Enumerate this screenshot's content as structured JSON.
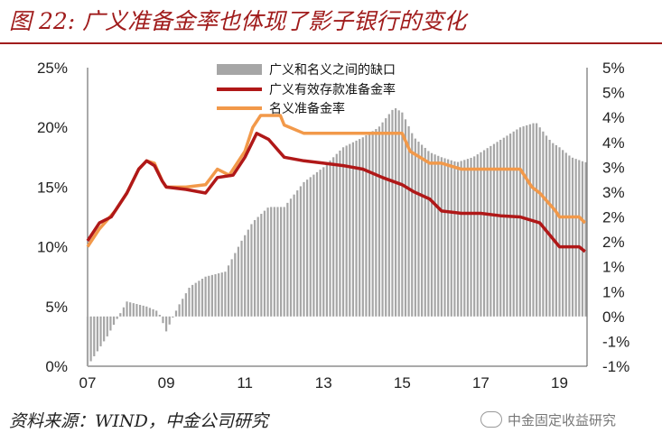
{
  "title": "图 22: 广义准备金率也体现了影子银行的变化",
  "source": "资料来源：WIND，中金公司研究",
  "watermark": "中金固定收益研究",
  "colors": {
    "bars": "#a6a6a6",
    "broad": "#b01818",
    "nominal": "#f2994a",
    "title": "#a01c1c"
  },
  "chart_data": {
    "type": "bar+line",
    "x_tick_labels": [
      "07",
      "09",
      "11",
      "13",
      "15",
      "17",
      "19"
    ],
    "x_tick_years": [
      2007,
      2009,
      2011,
      2013,
      2015,
      2017,
      2019
    ],
    "x_range": [
      2007.0,
      2019.7
    ],
    "y_left_range": [
      0,
      25
    ],
    "y_left_ticks": [
      "0%",
      "5%",
      "10%",
      "15%",
      "20%",
      "25%"
    ],
    "y_right_range": [
      -1,
      5
    ],
    "y_right_ticks": [
      "-1%",
      "-1%",
      "0%",
      "1%",
      "1%",
      "2%",
      "2%",
      "3%",
      "3%",
      "4%",
      "4%",
      "5%",
      "5%"
    ],
    "legend": [
      "广义和名义之间的缺口",
      "广义有效存款准备金率",
      "名义准备金率"
    ],
    "legend_position": "top-center",
    "gap_series": {
      "name": "广义和名义之间的缺口",
      "axis": "right",
      "unit": "%",
      "x": [
        2007.0,
        2007.5,
        2008.0,
        2008.5,
        2008.8,
        2009.0,
        2009.3,
        2009.6,
        2010.0,
        2010.5,
        2010.9,
        2011.2,
        2011.6,
        2012.0,
        2012.5,
        2013.0,
        2013.5,
        2014.0,
        2014.4,
        2014.8,
        2015.0,
        2015.3,
        2015.7,
        2016.0,
        2016.4,
        2016.8,
        2017.2,
        2017.6,
        2018.0,
        2018.4,
        2018.8,
        2019.0,
        2019.3,
        2019.65
      ],
      "y": [
        -1.0,
        -0.4,
        0.3,
        0.2,
        0.1,
        -0.3,
        0.2,
        0.6,
        0.8,
        0.9,
        1.5,
        1.9,
        2.2,
        2.2,
        2.7,
        3.0,
        3.4,
        3.6,
        3.8,
        4.2,
        4.1,
        3.6,
        3.3,
        3.2,
        3.1,
        3.2,
        3.4,
        3.6,
        3.8,
        3.9,
        3.5,
        3.4,
        3.2,
        3.1
      ]
    },
    "broad_series": {
      "name": "广义有效存款准备金率",
      "axis": "left",
      "unit": "%",
      "x": [
        2007.0,
        2007.3,
        2007.6,
        2008.0,
        2008.3,
        2008.5,
        2008.7,
        2008.9,
        2009.0,
        2009.5,
        2010.0,
        2010.3,
        2010.7,
        2011.0,
        2011.3,
        2011.6,
        2012.0,
        2012.5,
        2013.0,
        2013.5,
        2014.0,
        2014.5,
        2015.0,
        2015.3,
        2015.7,
        2016.0,
        2016.5,
        2017.0,
        2017.5,
        2018.0,
        2018.5,
        2019.0,
        2019.5,
        2019.65
      ],
      "y": [
        10.5,
        12.0,
        12.5,
        14.5,
        16.5,
        17.2,
        16.8,
        15.5,
        15.0,
        14.8,
        14.5,
        15.8,
        16.0,
        17.5,
        19.5,
        19.0,
        17.5,
        17.2,
        17.0,
        16.8,
        16.5,
        15.8,
        15.2,
        14.6,
        14.0,
        13.0,
        12.8,
        12.8,
        12.6,
        12.5,
        12.0,
        10.0,
        10.0,
        9.6
      ]
    },
    "nominal_series": {
      "name": "名义准备金率",
      "axis": "left",
      "unit": "%",
      "x": [
        2007.0,
        2007.3,
        2007.7,
        2008.0,
        2008.3,
        2008.5,
        2008.7,
        2008.9,
        2009.0,
        2009.5,
        2010.0,
        2010.3,
        2010.6,
        2011.0,
        2011.2,
        2011.4,
        2011.9,
        2012.0,
        2012.5,
        2013.0,
        2013.5,
        2014.0,
        2014.5,
        2015.0,
        2015.2,
        2015.7,
        2016.0,
        2016.5,
        2017.0,
        2017.5,
        2018.0,
        2018.3,
        2018.5,
        2018.9,
        2019.0,
        2019.5,
        2019.65
      ],
      "y": [
        10.0,
        11.5,
        13.0,
        14.5,
        16.5,
        17.2,
        17.0,
        15.5,
        15.0,
        15.0,
        15.2,
        16.5,
        16.0,
        18.0,
        20.0,
        21.0,
        21.0,
        20.2,
        19.5,
        19.5,
        19.5,
        19.5,
        19.5,
        19.5,
        18.0,
        17.0,
        17.0,
        16.5,
        16.5,
        16.5,
        16.5,
        15.0,
        14.5,
        13.0,
        12.5,
        12.5,
        12.0
      ]
    }
  }
}
